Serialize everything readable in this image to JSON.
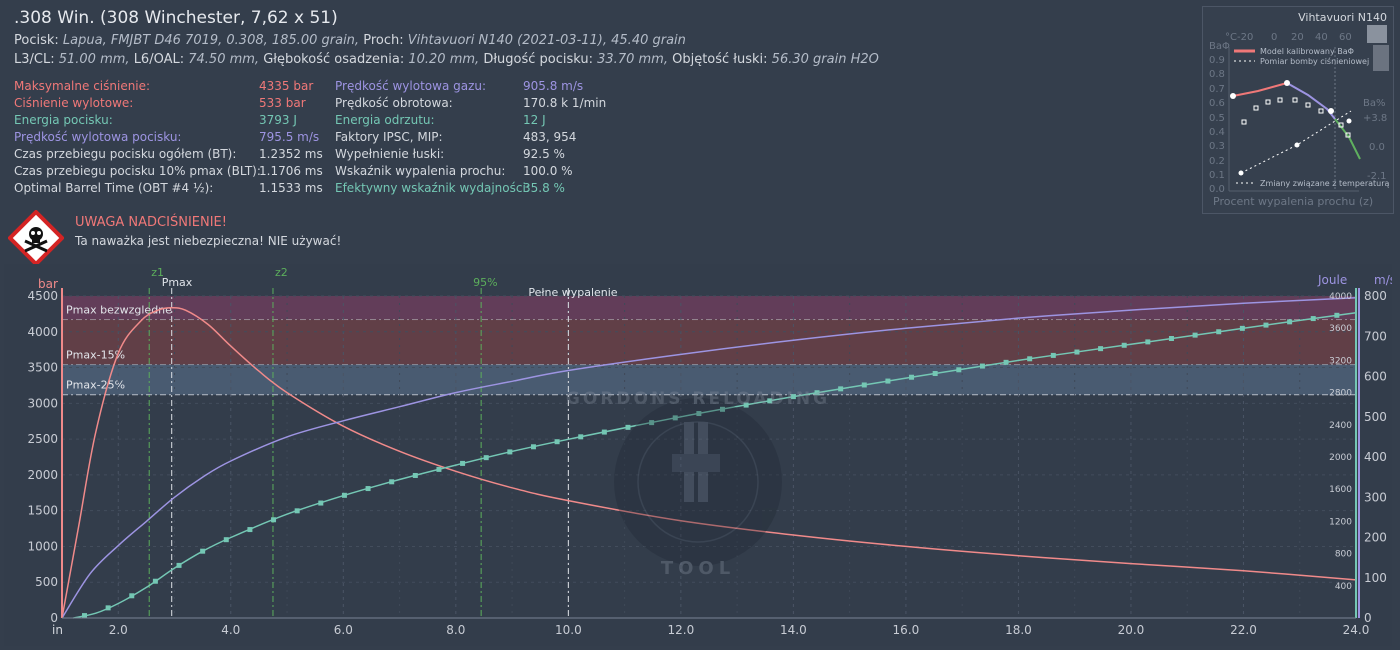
{
  "title": ".308 Win. (308 Winchester, 7,62 x 51)",
  "line1": {
    "pocisk_label": "Pocisk:",
    "pocisk_value": "Lapua, FMJBT D46 7019, 0.308, 185.00 grain,",
    "proch_label": "Proch:",
    "proch_value": "Vihtavuori N140 (2021-03-11), 45.40 grain"
  },
  "line2": {
    "l3_label": "L3/CL:",
    "l3_value": "51.00 mm,",
    "l6_label": "L6/OAL:",
    "l6_value": "74.50 mm,",
    "depth_label": "Głębokość osadzenia:",
    "depth_value": "10.20 mm,",
    "length_label": "Długość pocisku:",
    "length_value": "33.70 mm,",
    "volume_label": "Objętość łuski:",
    "volume_value": "56.30 grain H2O"
  },
  "stats_left": [
    {
      "label": "Maksymalne ciśnienie:",
      "value": "4335 bar",
      "color": "red"
    },
    {
      "label": "Ciśnienie wylotowe:",
      "value": "533 bar",
      "color": "red"
    },
    {
      "label": "Energia pocisku:",
      "value": "3793 J",
      "color": "teal"
    },
    {
      "label": "Prędkość wylotowa pocisku:",
      "value": "795.5 m/s",
      "color": "purple"
    },
    {
      "label": "Czas przebiegu pocisku ogółem (BT):",
      "value": "1.2352 ms",
      "color": "text"
    },
    {
      "label": "Czas przebiegu pocisku 10% pmax (BLT):",
      "value": "1.1706 ms",
      "color": "text"
    },
    {
      "label": "Optimal Barrel Time (OBT #4 ½):",
      "value": "1.1533 ms",
      "color": "text"
    }
  ],
  "stats_right": [
    {
      "label": "Prędkość wylotowa gazu:",
      "value": "905.8 m/s",
      "color": "purple"
    },
    {
      "label": "Prędkość obrotowa:",
      "value": "170.8 k 1/min",
      "color": "text"
    },
    {
      "label": "Energia odrzutu:",
      "value": "12 J",
      "color": "teal"
    },
    {
      "label": "Faktory IPSC, MIP:",
      "value": "483, 954",
      "color": "text"
    },
    {
      "label": "Wypełnienie łuski:",
      "value": "92.5 %",
      "color": "text"
    },
    {
      "label": "Wskaźnik wypalenia prochu:",
      "value": "100.0 %",
      "color": "text"
    },
    {
      "label": "Efektywny wskaźnik wydajności:",
      "value": "35.8 %",
      "color": "teal"
    }
  ],
  "warning": {
    "title": "UWAGA NADCIŚNIENIE!",
    "text": "Ta naważka jest niebezpieczna! NIE używać!"
  },
  "mini_chart": {
    "title": "Vihtavuori N140",
    "top_axis_unit": "°C",
    "top_ticks": [
      "-20",
      "0",
      "20",
      "40",
      "60"
    ],
    "left_unit": "BaΦ",
    "left_ticks": [
      "0.9",
      "0.8",
      "0.7",
      "0.6",
      "0.5",
      "0.4",
      "0.3",
      "0.2",
      "0.1",
      "0.0"
    ],
    "right_unit": "Ba%",
    "right_ticks": [
      "+3.8",
      "0.0",
      "-2.1"
    ],
    "legend_model": "Model kalibrowany BaΦ",
    "legend_bomb": "Pomiar bomby ciśnieniowej",
    "legend_temp": "Zmiany związane z temperaturą",
    "xlabel": "Procent wypalenia prochu (z)"
  },
  "colors": {
    "pressure": "#f08a8a",
    "velocity": "#9d94e2",
    "energy": "#74c7b4",
    "background": "#343e4c"
  },
  "chart_data": {
    "type": "line",
    "x_label": "in",
    "x_ticks": [
      "2.0",
      "4.0",
      "6.0",
      "8.0",
      "10.0",
      "12.0",
      "14.0",
      "16.0",
      "18.0",
      "20.0",
      "22.0",
      "24.0"
    ],
    "xlim": [
      1.0,
      24.0
    ],
    "y_left": {
      "unit": "bar",
      "ticks": [
        "0",
        "500",
        "1000",
        "1500",
        "2000",
        "2500",
        "3000",
        "3500",
        "4000",
        "4500"
      ],
      "lim": [
        0,
        4500
      ]
    },
    "y_energy": {
      "unit": "Joule",
      "ticks": [
        "400",
        "800",
        "1200",
        "1600",
        "2000",
        "2400",
        "2800",
        "3200",
        "3600",
        "4000"
      ],
      "lim": [
        0,
        4000
      ]
    },
    "y_velocity": {
      "unit": "m/s",
      "ticks": [
        "0",
        "100",
        "200",
        "300",
        "400",
        "500",
        "600",
        "700",
        "800"
      ],
      "lim": [
        0,
        800
      ]
    },
    "zones": [
      {
        "label": "Pmax bezwzględne",
        "from": 4170,
        "to": 4500,
        "color": "#6b3d5c"
      },
      {
        "label": "Pmax-15%",
        "from": 3540,
        "to": 4170,
        "color": "#6a3f47"
      },
      {
        "label": "Pmax-25%",
        "from": 3120,
        "to": 3540,
        "color": "#4d6078"
      }
    ],
    "markers": [
      {
        "label": "z1",
        "x": 2.55
      },
      {
        "label": "Pmax",
        "x": 2.95
      },
      {
        "label": "z2",
        "x": 4.75
      },
      {
        "label": "95%",
        "x": 8.45
      },
      {
        "label": "Pełne wypalenie",
        "x": 10.0
      }
    ],
    "series": [
      {
        "name": "Ciśnienie",
        "axis": "bar",
        "x": [
          1.0,
          1.3,
          1.6,
          2.0,
          2.4,
          2.7,
          2.95,
          3.2,
          3.6,
          4.0,
          4.5,
          5.0,
          6.0,
          7.0,
          8.0,
          9.0,
          10.0,
          12.0,
          14.0,
          16.0,
          18.0,
          20.0,
          22.0,
          24.0
        ],
        "values": [
          0,
          1300,
          2600,
          3700,
          4150,
          4300,
          4335,
          4300,
          4100,
          3800,
          3450,
          3150,
          2680,
          2330,
          2050,
          1820,
          1640,
          1360,
          1160,
          1000,
          870,
          760,
          660,
          533
        ]
      },
      {
        "name": "Prędkość pocisku",
        "axis": "m/s",
        "x": [
          1.0,
          1.5,
          2.0,
          2.5,
          3.0,
          3.5,
          4.0,
          5.0,
          6.0,
          7.0,
          8.0,
          9.0,
          10.0,
          12.0,
          14.0,
          16.0,
          18.0,
          20.0,
          22.0,
          24.0
        ],
        "values": [
          0,
          110,
          180,
          240,
          300,
          350,
          390,
          450,
          490,
          525,
          560,
          588,
          615,
          655,
          690,
          720,
          745,
          765,
          782,
          795.5
        ]
      },
      {
        "name": "Energia pocisku",
        "axis": "Joule",
        "x": [
          1.2,
          1.6,
          2.0,
          2.5,
          3.0,
          3.5,
          4.0,
          5.0,
          6.0,
          7.0,
          8.0,
          9.0,
          10.0,
          12.0,
          14.0,
          16.0,
          18.0,
          20.0,
          22.0,
          24.0
        ],
        "values": [
          0,
          60,
          180,
          380,
          620,
          830,
          1000,
          1290,
          1520,
          1720,
          1900,
          2070,
          2220,
          2500,
          2750,
          2980,
          3200,
          3400,
          3600,
          3793
        ]
      }
    ]
  }
}
